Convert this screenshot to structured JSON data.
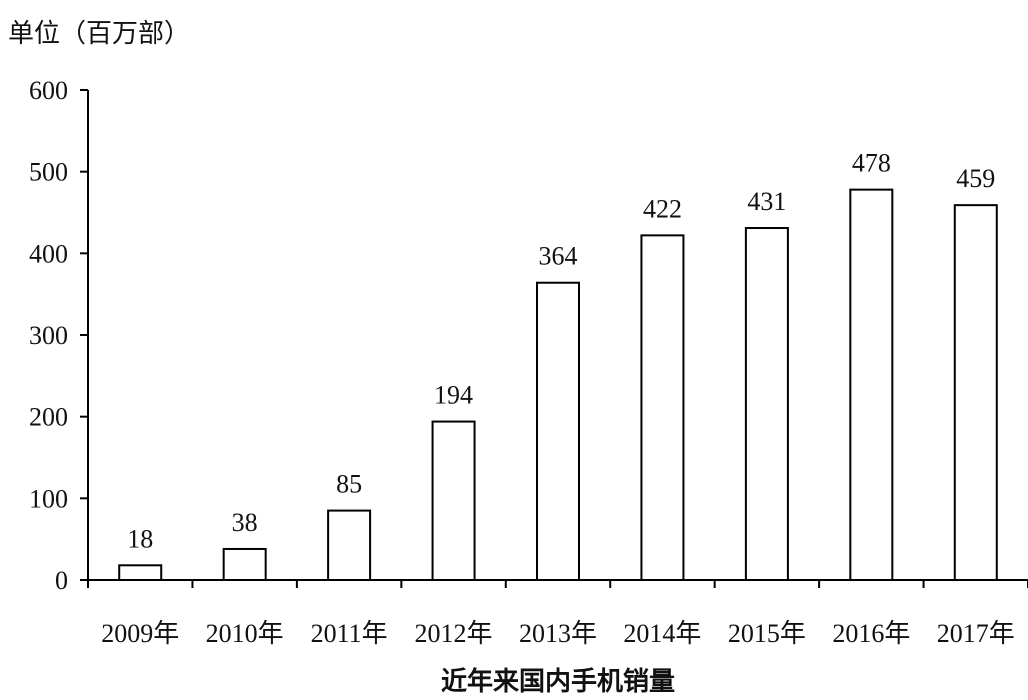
{
  "chart_data": {
    "type": "bar",
    "title": "近年来国内手机销量",
    "unit_label": "单位（百万部）",
    "categories": [
      "2009年",
      "2010年",
      "2011年",
      "2012年",
      "2013年",
      "2014年",
      "2015年",
      "2016年",
      "2017年"
    ],
    "values": [
      18,
      38,
      85,
      194,
      364,
      422,
      431,
      478,
      459
    ],
    "ylim": [
      0,
      600
    ],
    "yticks": [
      0,
      100,
      200,
      300,
      400,
      500,
      600
    ],
    "xlabel": "",
    "ylabel": "",
    "grid": false,
    "legend": "none",
    "colors": {
      "bar_fill": "#ffffff",
      "bar_stroke": "#000000",
      "axis": "#000000"
    }
  }
}
